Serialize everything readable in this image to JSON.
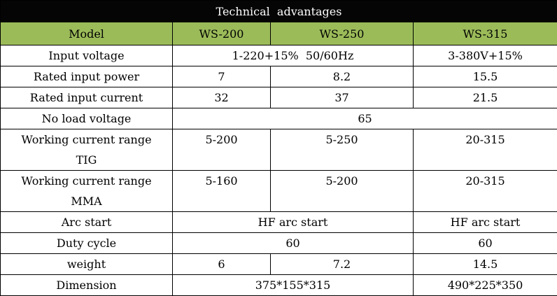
{
  "title": "Technical  advantages",
  "header": [
    "Model",
    "WS-200",
    "WS-250",
    "WS-315"
  ],
  "rows": {
    "input_voltage": {
      "label": "Input voltage",
      "single_phase": "1-220+15%  50/60Hz",
      "ws315": "3-380V+15%"
    },
    "rated_input_power": {
      "label": "Rated input power",
      "ws200": "7",
      "ws250": "8.2",
      "ws315": "15.5"
    },
    "rated_input_current": {
      "label": "Rated input current",
      "ws200": "32",
      "ws250": "37",
      "ws315": "21.5"
    },
    "no_load_voltage": {
      "label": "No load voltage",
      "all": "65"
    },
    "current_tig": {
      "label1": "Working current range",
      "label2": "TIG",
      "ws200": "5-200",
      "ws250": "5-250",
      "ws315": "20-315"
    },
    "current_mma": {
      "label1": "Working current range",
      "label2": "MMA",
      "ws200": "5-160",
      "ws250": "5-200",
      "ws315": "20-315"
    },
    "arc_start": {
      "label": "Arc start",
      "ws200_250": "HF arc start",
      "ws315": "HF arc start"
    },
    "duty_cycle": {
      "label": "Duty cycle",
      "ws200_250": "60",
      "ws315": "60"
    },
    "weight": {
      "label": "weight",
      "ws200": "6",
      "ws250": "7.2",
      "ws315": "14.5"
    },
    "dimension": {
      "label": "Dimension",
      "ws200_250": "375*155*315",
      "ws315": "490*225*350"
    }
  }
}
